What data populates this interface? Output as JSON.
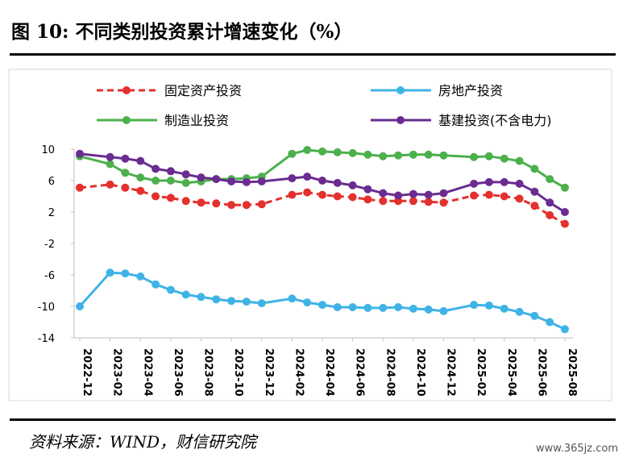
{
  "figure": {
    "title": "图 10:  不同类别投资累计增速变化（%）",
    "source": "资料来源：WIND，财信研究院",
    "watermark": "www.365jz.com"
  },
  "chart_data": {
    "type": "line",
    "x": [
      "2022-12",
      "2023-01",
      "2023-02",
      "2023-03",
      "2023-04",
      "2023-05",
      "2023-06",
      "2023-07",
      "2023-08",
      "2023-09",
      "2023-10",
      "2023-11",
      "2023-12",
      "2024-01",
      "2024-02",
      "2024-03",
      "2024-04",
      "2024-05",
      "2024-06",
      "2024-07",
      "2024-08",
      "2024-09",
      "2024-10",
      "2024-11",
      "2024-12",
      "2025-01",
      "2025-02",
      "2025-03",
      "2025-04",
      "2025-05",
      "2025-06",
      "2025-07",
      "2025-08"
    ],
    "tick_labels": [
      "2022-12",
      "2023-02",
      "2023-04",
      "2023-06",
      "2023-08",
      "2023-10",
      "2023-12",
      "2024-02",
      "2024-04",
      "2024-06",
      "2024-08",
      "2024-10",
      "2024-12",
      "2025-02",
      "2025-04",
      "2025-06",
      "2025-08"
    ],
    "ylim": [
      -14,
      10
    ],
    "yticks": [
      "10",
      "6",
      "2",
      "-2",
      "-6",
      "-10",
      "-14"
    ],
    "grid": false,
    "legend_position": "top",
    "series": [
      {
        "name": "固定资产投资",
        "color": "#e3312d",
        "dashed": true,
        "values": [
          5.1,
          null,
          5.5,
          5.1,
          4.7,
          4.0,
          3.8,
          3.4,
          3.2,
          3.1,
          2.9,
          2.9,
          3.0,
          null,
          4.2,
          4.5,
          4.2,
          4.0,
          3.9,
          3.6,
          3.4,
          3.4,
          3.4,
          3.3,
          3.2,
          null,
          4.1,
          4.2,
          4.0,
          3.7,
          2.8,
          1.6,
          0.5
        ]
      },
      {
        "name": "房地产投资",
        "color": "#3fb3e6",
        "dashed": false,
        "values": [
          -10.0,
          null,
          -5.7,
          -5.8,
          -6.2,
          -7.2,
          -7.9,
          -8.5,
          -8.8,
          -9.1,
          -9.3,
          -9.4,
          -9.6,
          null,
          -9.0,
          -9.5,
          -9.8,
          -10.1,
          -10.1,
          -10.2,
          -10.2,
          -10.1,
          -10.3,
          -10.4,
          -10.6,
          null,
          -9.8,
          -9.9,
          -10.3,
          -10.7,
          -11.2,
          -12.0,
          -12.9
        ]
      },
      {
        "name": "制造业投资",
        "color": "#4cb04c",
        "dashed": false,
        "values": [
          9.1,
          null,
          8.1,
          7.0,
          6.4,
          6.0,
          6.0,
          5.7,
          5.9,
          6.2,
          6.2,
          6.3,
          6.5,
          null,
          9.4,
          9.9,
          9.7,
          9.6,
          9.5,
          9.3,
          9.1,
          9.2,
          9.3,
          9.3,
          9.2,
          null,
          9.0,
          9.1,
          8.8,
          8.5,
          7.5,
          6.2,
          5.1
        ]
      },
      {
        "name": "基建投资(不含电力)",
        "color": "#6a2c91",
        "dashed": false,
        "values": [
          9.4,
          null,
          9.0,
          8.8,
          8.5,
          7.5,
          7.2,
          6.8,
          6.4,
          6.2,
          5.9,
          5.8,
          5.9,
          null,
          6.3,
          6.5,
          6.0,
          5.7,
          5.4,
          4.9,
          4.4,
          4.1,
          4.3,
          4.2,
          4.4,
          null,
          5.6,
          5.8,
          5.8,
          5.6,
          4.6,
          3.2,
          2.0
        ]
      }
    ]
  }
}
